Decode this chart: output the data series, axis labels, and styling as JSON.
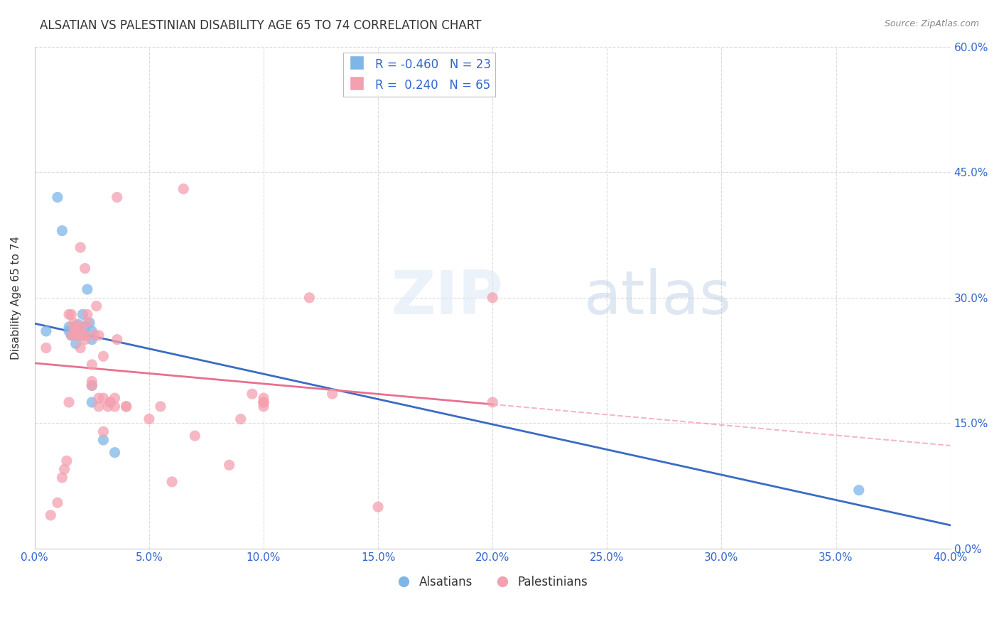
{
  "title": "ALSATIAN VS PALESTINIAN DISABILITY AGE 65 TO 74 CORRELATION CHART",
  "source": "Source: ZipAtlas.com",
  "ylabel": "Disability Age 65 to 74",
  "R_alsatian": -0.46,
  "N_alsatian": 23,
  "R_palestinian": 0.24,
  "N_palestinian": 65,
  "xlim": [
    0.0,
    0.4
  ],
  "ylim": [
    0.0,
    0.6
  ],
  "xticks": [
    0.0,
    0.05,
    0.1,
    0.15,
    0.2,
    0.25,
    0.3,
    0.35,
    0.4
  ],
  "yticks": [
    0.0,
    0.15,
    0.3,
    0.45,
    0.6
  ],
  "alsatian_color": "#7EB6E8",
  "palestinian_color": "#F4A0B0",
  "trend_alsatian_color": "#3A6BC4",
  "trend_palestinian_color": "#E87090",
  "background_color": "#ffffff",
  "alsatian_x": [
    0.005,
    0.01,
    0.012,
    0.015,
    0.015,
    0.016,
    0.017,
    0.018,
    0.018,
    0.019,
    0.02,
    0.02,
    0.021,
    0.022,
    0.023,
    0.024,
    0.025,
    0.025,
    0.025,
    0.025,
    0.03,
    0.035,
    0.36
  ],
  "alsatian_y": [
    0.26,
    0.42,
    0.38,
    0.26,
    0.265,
    0.255,
    0.265,
    0.245,
    0.255,
    0.268,
    0.255,
    0.26,
    0.28,
    0.265,
    0.31,
    0.27,
    0.195,
    0.175,
    0.26,
    0.25,
    0.13,
    0.115,
    0.07
  ],
  "palestinian_x": [
    0.005,
    0.007,
    0.01,
    0.012,
    0.013,
    0.014,
    0.015,
    0.015,
    0.016,
    0.016,
    0.017,
    0.017,
    0.018,
    0.018,
    0.018,
    0.019,
    0.019,
    0.02,
    0.02,
    0.02,
    0.021,
    0.021,
    0.022,
    0.022,
    0.022,
    0.023,
    0.023,
    0.025,
    0.025,
    0.025,
    0.026,
    0.027,
    0.028,
    0.028,
    0.028,
    0.03,
    0.03,
    0.03,
    0.032,
    0.033,
    0.033,
    0.035,
    0.035,
    0.036,
    0.036,
    0.04,
    0.04,
    0.05,
    0.055,
    0.06,
    0.065,
    0.07,
    0.085,
    0.09,
    0.095,
    0.1,
    0.1,
    0.1,
    0.1,
    0.1,
    0.12,
    0.13,
    0.15,
    0.2,
    0.2
  ],
  "palestinian_y": [
    0.24,
    0.04,
    0.055,
    0.085,
    0.095,
    0.105,
    0.175,
    0.28,
    0.255,
    0.28,
    0.27,
    0.265,
    0.255,
    0.255,
    0.26,
    0.265,
    0.255,
    0.36,
    0.265,
    0.24,
    0.255,
    0.255,
    0.335,
    0.255,
    0.25,
    0.28,
    0.27,
    0.195,
    0.2,
    0.22,
    0.255,
    0.29,
    0.18,
    0.17,
    0.255,
    0.23,
    0.18,
    0.14,
    0.17,
    0.175,
    0.175,
    0.18,
    0.17,
    0.42,
    0.25,
    0.17,
    0.17,
    0.155,
    0.17,
    0.08,
    0.43,
    0.135,
    0.1,
    0.155,
    0.185,
    0.175,
    0.175,
    0.18,
    0.175,
    0.17,
    0.3,
    0.185,
    0.05,
    0.3,
    0.175
  ]
}
